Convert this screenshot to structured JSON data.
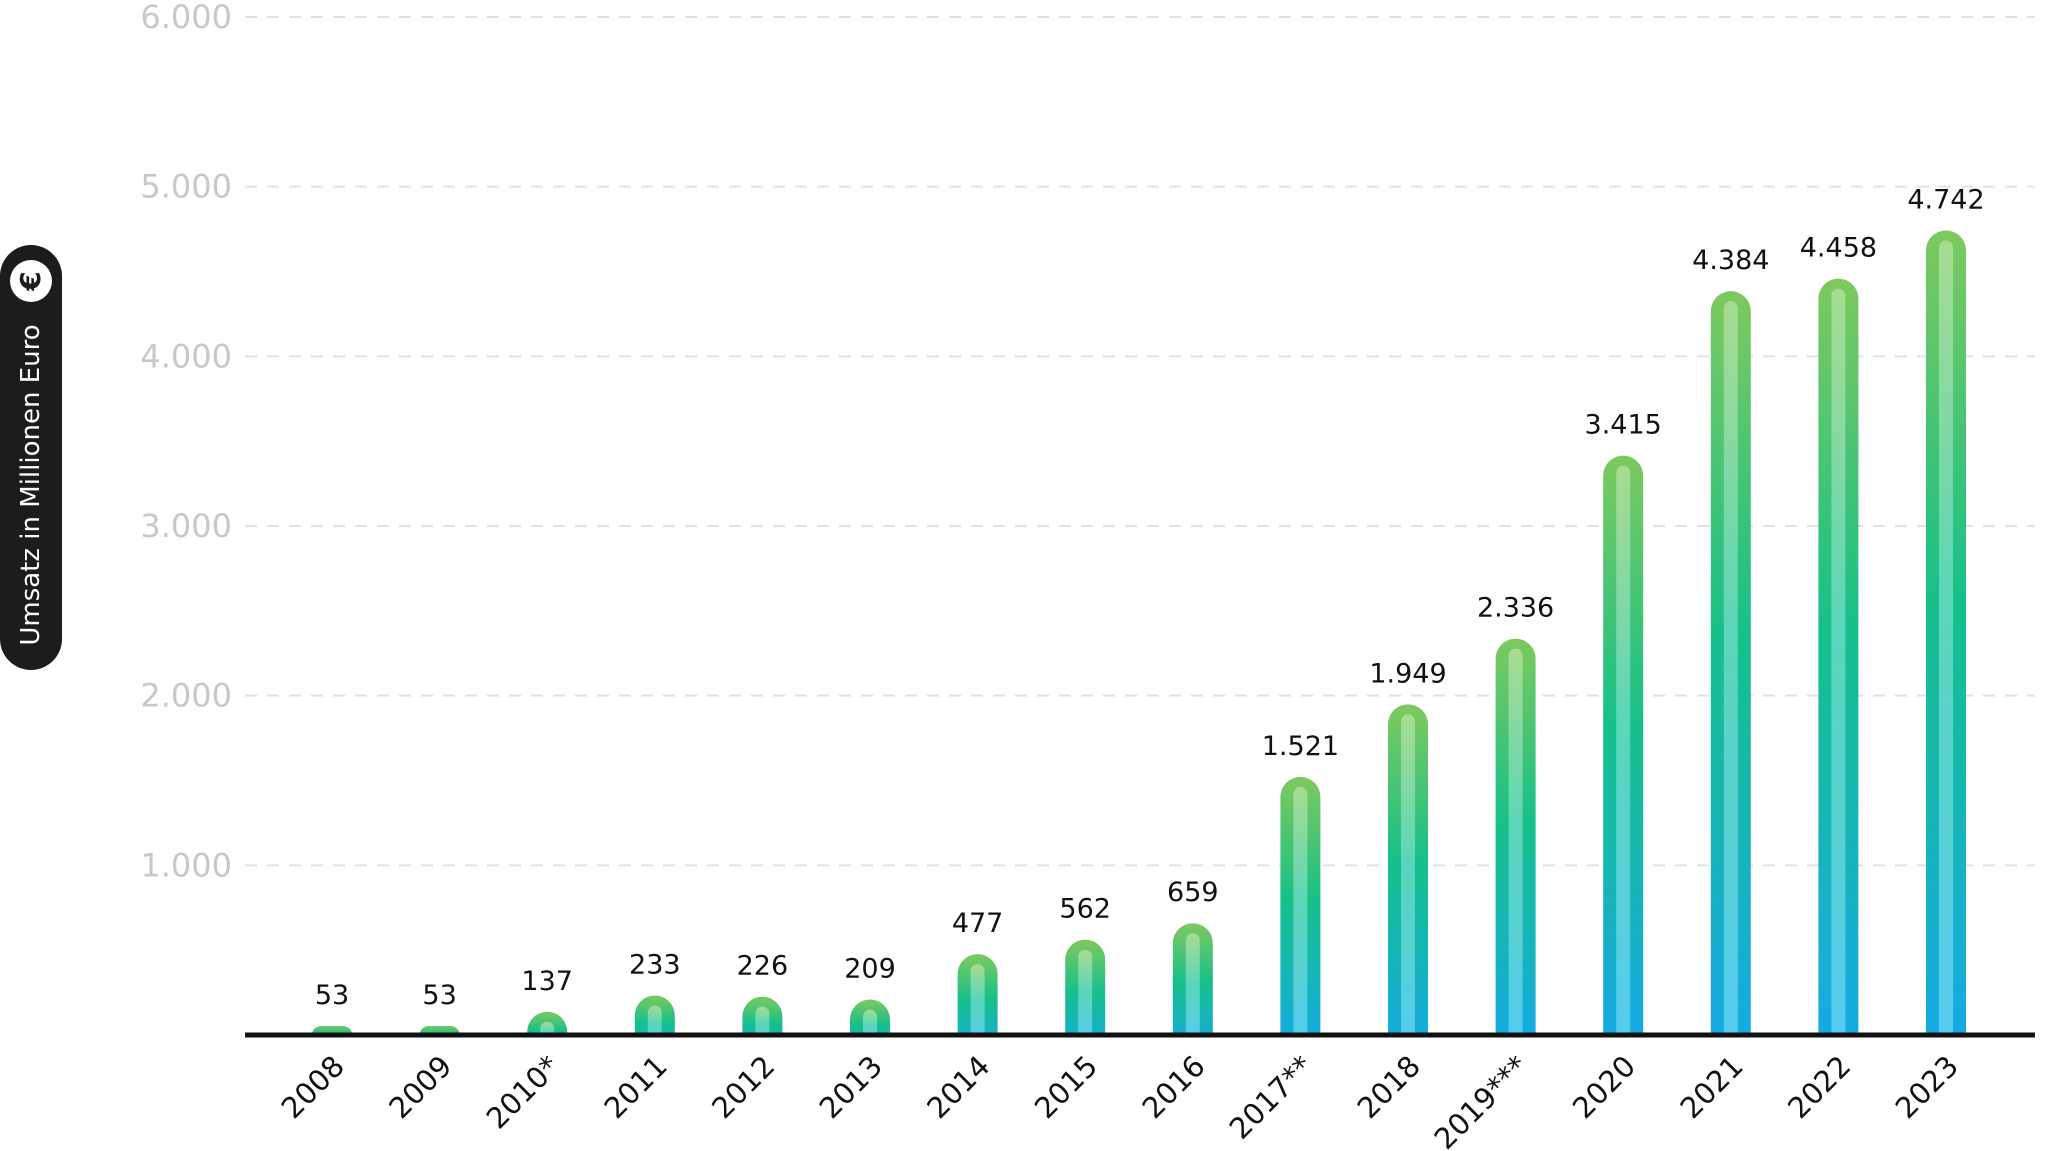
{
  "chart_data": {
    "type": "bar",
    "categories": [
      "2008",
      "2009",
      "2010*",
      "2011",
      "2012",
      "2013",
      "2014",
      "2015",
      "2016",
      "2017**",
      "2018",
      "2019***",
      "2020",
      "2021",
      "2022",
      "2023"
    ],
    "values": [
      53,
      53,
      137,
      233,
      226,
      209,
      477,
      562,
      659,
      1521,
      1949,
      2336,
      3415,
      4384,
      4458,
      4742
    ],
    "value_labels": [
      "53",
      "53",
      "137",
      "233",
      "226",
      "209",
      "477",
      "562",
      "659",
      "1.521",
      "1.949",
      "2.336",
      "3.415",
      "4.384",
      "4.458",
      "4.742"
    ],
    "title": "",
    "xlabel": "",
    "ylabel": "Umsatz in Millionen Euro",
    "ylim": [
      0,
      6000
    ],
    "yticks": [
      1000,
      2000,
      3000,
      4000,
      5000,
      6000
    ],
    "ytick_labels": [
      "1.000",
      "2.000",
      "3.000",
      "4.000",
      "5.000",
      "6.000"
    ],
    "grid": true,
    "grid_style": "dashed",
    "legend": "none"
  },
  "colors": {
    "bar_top": "#7dc95e",
    "bar_mid": "#16c08a",
    "bar_bottom": "#16a9e8",
    "grid": "#e2e2e2",
    "axis": "#111111",
    "ytick": "#c8c8c8",
    "pill": "#1c1c1c"
  },
  "icons": {
    "ylabel_icon": "euro-icon",
    "ylabel_icon_glyph": "€"
  }
}
